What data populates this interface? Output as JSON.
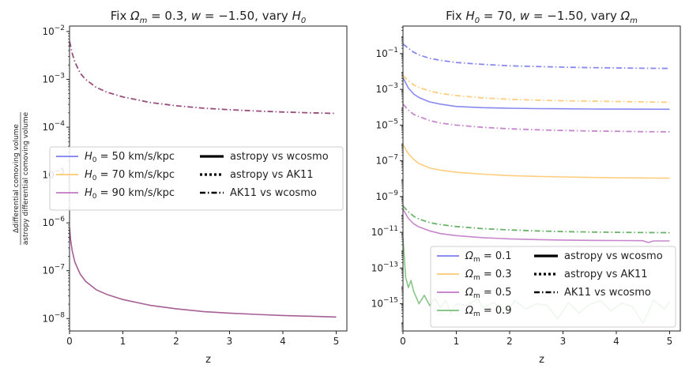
{
  "chart_data": [
    {
      "type": "line",
      "title": "Fix Ω_m = 0.3, w = −1.50, vary H_0",
      "title_parts": [
        "Fix ",
        "Ω",
        "m",
        " = 0.3, ",
        "w",
        " = −1.50, vary ",
        "H",
        "0"
      ],
      "xlabel": "z",
      "ylabel_num": "Δdifferential comoving volume",
      "ylabel_den": "astropy differential comoving volume",
      "xlim": [
        0,
        5.2
      ],
      "ylim": [
        5.5e-09,
        0.013
      ],
      "yscale": "log",
      "x_ticks": [
        0,
        1,
        2,
        3,
        4,
        5
      ],
      "y_ticks": [
        {
          "base": "10",
          "exp": "−8",
          "value": 1e-08
        },
        {
          "base": "10",
          "exp": "−7",
          "value": 1e-07
        },
        {
          "base": "10",
          "exp": "−6",
          "value": 1e-06
        },
        {
          "base": "10",
          "exp": "−5",
          "value": 1e-05
        },
        {
          "base": "10",
          "exp": "−4",
          "value": 0.0001
        },
        {
          "base": "10",
          "exp": "−3",
          "value": 0.001
        },
        {
          "base": "10",
          "exp": "−2",
          "value": 0.01
        }
      ],
      "legend": {
        "placement": "center-left",
        "series_entries": [
          {
            "sym": "H",
            "sub": "0",
            "text": " = 50 km/s/kpc",
            "color": "#7b7bf0"
          },
          {
            "sym": "H",
            "sub": "0",
            "text": " = 70 km/s/kpc",
            "color": "#ffc870"
          },
          {
            "sym": "H",
            "sub": "0",
            "text": " = 90 km/s/kpc",
            "color": "#c07ac6"
          }
        ],
        "style_entries": [
          {
            "text": "astropy vs wcosmo",
            "style": "solid"
          },
          {
            "text": "astropy vs AK11",
            "style": "dotted"
          },
          {
            "text": "AK11 vs wcosmo",
            "style": "dashdot"
          }
        ]
      },
      "series": [
        {
          "comparison": "AK11 vs wcosmo",
          "style": "dashdot",
          "color": "#8e3a6e",
          "x": [
            0.001,
            0.05,
            0.1,
            0.2,
            0.3,
            0.5,
            0.7,
            1.0,
            1.5,
            2.0,
            2.5,
            3.0,
            3.5,
            4.0,
            4.5,
            5.0
          ],
          "y": [
            0.0062,
            0.0035,
            0.0023,
            0.00135,
            0.001,
            0.00068,
            0.00054,
            0.00043,
            0.00033,
            0.00028,
            0.00025,
            0.000232,
            0.000218,
            0.000208,
            0.0002,
            0.000194
          ]
        },
        {
          "comparison": "astropy vs AK11",
          "style": "solid",
          "color": "#9c4e8a",
          "x": [
            0.0,
            0.02,
            0.05,
            0.1,
            0.2,
            0.3,
            0.5,
            0.7,
            1.0,
            1.5,
            2.0,
            2.5,
            3.0,
            3.5,
            4.0,
            4.5,
            5.0
          ],
          "y": [
            8e-07,
            4.5e-07,
            2.6e-07,
            1.5e-07,
            8.5e-08,
            6e-08,
            4e-08,
            3.2e-08,
            2.5e-08,
            1.9e-08,
            1.6e-08,
            1.4e-08,
            1.3e-08,
            1.22e-08,
            1.16e-08,
            1.12e-08,
            1.08e-08
          ]
        }
      ]
    },
    {
      "type": "line",
      "title": "Fix H_0 = 70, w = −1.50, vary Ω_m",
      "title_parts": [
        "Fix ",
        "H",
        "0",
        " = 70, ",
        "w",
        " = −1.50, vary ",
        "Ω",
        "m"
      ],
      "xlabel": "z",
      "xlim": [
        0,
        5.2
      ],
      "ylim": [
        3e-17,
        3.5
      ],
      "yscale": "log",
      "x_ticks": [
        0,
        1,
        2,
        3,
        4,
        5
      ],
      "y_ticks": [
        {
          "base": "10",
          "exp": "−15",
          "value": 1e-15
        },
        {
          "base": "10",
          "exp": "−13",
          "value": 1e-13
        },
        {
          "base": "10",
          "exp": "−11",
          "value": 1e-11
        },
        {
          "base": "10",
          "exp": "−9",
          "value": 1e-09
        },
        {
          "base": "10",
          "exp": "−7",
          "value": 1e-07
        },
        {
          "base": "10",
          "exp": "−5",
          "value": 1e-05
        },
        {
          "base": "10",
          "exp": "−3",
          "value": 0.001
        },
        {
          "base": "10",
          "exp": "−1",
          "value": 0.1
        }
      ],
      "legend": {
        "placement": "lower-right",
        "series_entries": [
          {
            "sym": "Ω",
            "sub": "m",
            "text": " = 0.1",
            "color": "#7b7bf0"
          },
          {
            "sym": "Ω",
            "sub": "m",
            "text": " = 0.3",
            "color": "#ffc870"
          },
          {
            "sym": "Ω",
            "sub": "m",
            "text": " = 0.5",
            "color": "#c07ac6"
          },
          {
            "sym": "Ω",
            "sub": "m",
            "text": " = 0.9",
            "color": "#7bbf7b"
          }
        ],
        "style_entries": [
          {
            "text": "astropy vs wcosmo",
            "style": "solid"
          },
          {
            "text": "astropy vs AK11",
            "style": "dotted"
          },
          {
            "text": "AK11 vs wcosmo",
            "style": "dashdot"
          }
        ]
      },
      "series": [
        {
          "comparison": "AK11 vs wcosmo",
          "style": "dashdot",
          "color": "#7b7bf0",
          "x": [
            0.0,
            0.1,
            0.2,
            0.3,
            0.5,
            0.7,
            1.0,
            1.5,
            2.0,
            2.5,
            3.0,
            3.5,
            4.0,
            4.5,
            5.0
          ],
          "y": [
            0.35,
            0.2,
            0.12,
            0.085,
            0.055,
            0.042,
            0.032,
            0.025,
            0.021,
            0.019,
            0.0175,
            0.0165,
            0.0158,
            0.0153,
            0.015
          ]
        },
        {
          "comparison": "AK11 vs wcosmo",
          "style": "dashdot",
          "color": "#ffc870",
          "x": [
            0.0,
            0.1,
            0.2,
            0.3,
            0.5,
            0.7,
            1.0,
            1.5,
            2.0,
            2.5,
            3.0,
            3.5,
            4.0,
            4.5,
            5.0
          ],
          "y": [
            0.006,
            0.003,
            0.0018,
            0.0013,
            0.0008,
            0.0006,
            0.00045,
            0.00033,
            0.00028,
            0.00025,
            0.00023,
            0.00022,
            0.00021,
            0.0002,
            0.00019
          ]
        },
        {
          "comparison": "astropy vs wcosmo",
          "style": "solid",
          "color": "#7b7bf0",
          "x": [
            0.0,
            0.1,
            0.2,
            0.3,
            0.5,
            0.7,
            1.0,
            1.5,
            2.0,
            2.5,
            3.0,
            3.5,
            4.0,
            4.5,
            5.0
          ],
          "y": [
            0.0045,
            0.0012,
            0.00055,
            0.00035,
            0.0002,
            0.00015,
            0.00011,
            9.5e-05,
            8.8e-05,
            8.4e-05,
            8.2e-05,
            8e-05,
            7.9e-05,
            7.8e-05,
            7.7e-05
          ]
        },
        {
          "comparison": "AK11 vs wcosmo",
          "style": "dashdot",
          "color": "#c07ac6",
          "x": [
            0.0,
            0.1,
            0.2,
            0.3,
            0.5,
            0.7,
            1.0,
            1.5,
            2.0,
            2.5,
            3.0,
            3.5,
            4.0,
            4.5,
            5.0
          ],
          "y": [
            0.00015,
            7e-05,
            4e-05,
            3e-05,
            1.8e-05,
            1.3e-05,
            1e-05,
            7.5e-06,
            6.2e-06,
            5.5e-06,
            5e-06,
            4.7e-06,
            4.5e-06,
            4.3e-06,
            4.2e-06
          ]
        },
        {
          "comparison": "astropy vs AK11",
          "style": "solid",
          "color": "#ffc870",
          "x": [
            0.0,
            0.1,
            0.2,
            0.3,
            0.5,
            0.7,
            1.0,
            1.5,
            2.0,
            2.5,
            3.0,
            3.5,
            4.0,
            4.5,
            5.0
          ],
          "y": [
            8e-07,
            2.5e-07,
            1.2e-07,
            7e-08,
            4e-08,
            3e-08,
            2.3e-08,
            1.8e-08,
            1.5e-08,
            1.35e-08,
            1.25e-08,
            1.18e-08,
            1.13e-08,
            1.1e-08,
            1.07e-08
          ]
        },
        {
          "comparison": "AK11 vs wcosmo",
          "style": "dashdot",
          "color": "#5aab5a",
          "x": [
            0.0,
            0.1,
            0.2,
            0.3,
            0.5,
            0.7,
            1.0,
            1.5,
            2.0,
            2.5,
            3.0,
            3.5,
            4.0,
            4.5,
            5.0
          ],
          "y": [
            3e-10,
            1.4e-10,
            8e-11,
            5.5e-11,
            3.5e-11,
            2.7e-11,
            2.1e-11,
            1.6e-11,
            1.35e-11,
            1.2e-11,
            1.1e-11,
            1.04e-11,
            1e-11,
            9.7e-12,
            9.5e-12
          ]
        },
        {
          "comparison": "astropy vs AK11",
          "style": "solid",
          "color": "#c07ac6",
          "x": [
            0.0,
            0.1,
            0.2,
            0.3,
            0.5,
            0.7,
            1.0,
            1.5,
            2.0,
            2.5,
            3.0,
            3.5,
            4.0,
            4.5,
            4.6,
            4.7,
            5.0
          ],
          "y": [
            2e-10,
            6e-11,
            3e-11,
            2e-11,
            1.2e-11,
            8.5e-12,
            6.5e-12,
            5e-12,
            4.3e-12,
            3.9e-12,
            3.7e-12,
            3.55e-12,
            3.45e-12,
            3.4e-12,
            2.7e-12,
            3.3e-12,
            3.3e-12
          ]
        },
        {
          "comparison": "astropy vs wcosmo",
          "style": "solid",
          "color": "#7bbf7b",
          "x": [
            0.0,
            0.05,
            0.1,
            0.15,
            0.2,
            0.3,
            0.4,
            0.5,
            0.6,
            0.7,
            0.8,
            0.9,
            1.0,
            1.2,
            1.4,
            1.5,
            1.7,
            1.9,
            2.1,
            2.3,
            2.5,
            2.7,
            2.9,
            3.1,
            3.3,
            3.5,
            3.7,
            3.9,
            4.1,
            4.3,
            4.5,
            4.7,
            4.9,
            5.0
          ],
          "y": [
            5e-12,
            3e-14,
            8e-15,
            2e-14,
            5e-15,
            1e-15,
            3e-15,
            8e-16,
            2e-15,
            6e-16,
            1.5e-15,
            3e-16,
            1e-15,
            8e-16,
            2e-15,
            6e-16,
            1.2e-15,
            2.5e-16,
            1.5e-15,
            5e-16,
            1e-15,
            8e-16,
            1.4e-16,
            1.2e-15,
            3e-16,
            9e-16,
            1.5e-15,
            4e-16,
            1.1e-15,
            7e-16,
            8e-17,
            1.6e-15,
            5e-16,
            1.3e-15
          ]
        }
      ]
    }
  ]
}
